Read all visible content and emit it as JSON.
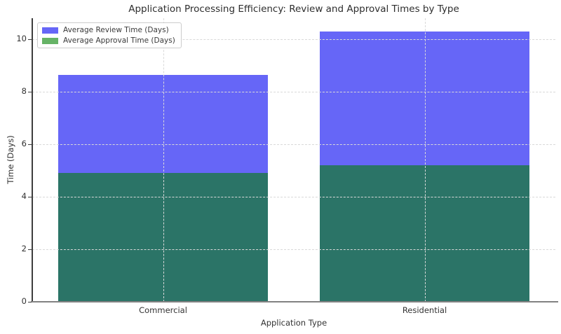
{
  "chart_data": {
    "type": "bar",
    "bar_mode": "overlay",
    "title": "Application Processing Efficiency: Review and Approval Times by Type",
    "xlabel": "Application Type",
    "ylabel": "Time (Days)",
    "categories": [
      "Commercial",
      "Residential"
    ],
    "series": [
      {
        "name": "Average Review Time (Days)",
        "values": [
          8.65,
          10.3
        ],
        "color": "#6666f7",
        "legend_color": "#6666f7"
      },
      {
        "name": "Average Approval Time (Days)",
        "values": [
          4.9,
          5.2
        ],
        "color": "#2b7467",
        "legend_color": "#66b366"
      }
    ],
    "ylim": [
      0,
      10.8
    ],
    "yticks": [
      0,
      2,
      4,
      6,
      8,
      10
    ],
    "bar_width_frac": 0.8,
    "grid": true,
    "grid_style": "dashed",
    "legend_position": "upper left",
    "colors": {
      "grid": "#d9d9d9",
      "axis": "#828282",
      "spine": "#3d3d3d",
      "text": "#333333"
    }
  }
}
